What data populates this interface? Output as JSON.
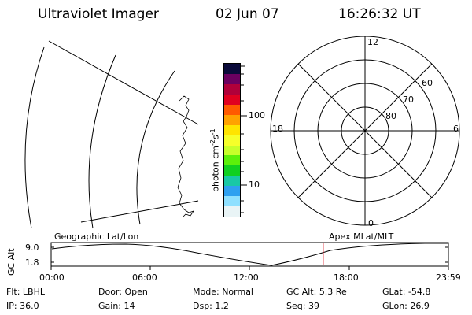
{
  "header": {
    "title": "Ultraviolet Imager",
    "date": "02 Jun 07",
    "time": "16:26:32 UT"
  },
  "colorbar": {
    "label": "photon cm",
    "label_exp1": "-2",
    "label_s": "s",
    "label_exp2": "-1",
    "ticks": [
      "100",
      "10"
    ],
    "colors": [
      "#0a0a3a",
      "#6b0060",
      "#b0003a",
      "#e00020",
      "#ff5a00",
      "#ffa200",
      "#ffe400",
      "#f6ff2a",
      "#c8ff2a",
      "#5cf00a",
      "#10d020",
      "#19c8a6",
      "#2ea0f0",
      "#8fe0ff",
      "#e9f4f6"
    ]
  },
  "polar_plot": {
    "clock_labels": [
      "12",
      "18",
      "6",
      "0"
    ],
    "lat_labels": [
      "60",
      "70",
      "80"
    ]
  },
  "timeline": {
    "ylabel": "GC Alt",
    "yticks": [
      "9.0",
      "1.8"
    ],
    "left_label": "Geographic Lat/Lon",
    "right_label": "Apex MLat/MLT",
    "xticks": [
      "00:00",
      "06:00",
      "12:00",
      "18:00",
      "23:59"
    ],
    "current_time_hours": 16.44,
    "marker_color": "#e0303a"
  },
  "info": {
    "row1": [
      {
        "label": "Flt:",
        "value": "LBHL"
      },
      {
        "label": "Door:",
        "value": "Open"
      },
      {
        "label": "Mode:",
        "value": "Normal"
      },
      {
        "label": "GC Alt:",
        "value": "5.3 Re"
      },
      {
        "label": "GLat:",
        "value": "-54.8"
      }
    ],
    "row2": [
      {
        "label": "IP:",
        "value": "36.0"
      },
      {
        "label": "Gain:",
        "value": "14"
      },
      {
        "label": "Dsp:",
        "value": "1.2"
      },
      {
        "label": "Seq:",
        "value": "39"
      },
      {
        "label": "GLon:",
        "value": "26.9"
      }
    ]
  }
}
